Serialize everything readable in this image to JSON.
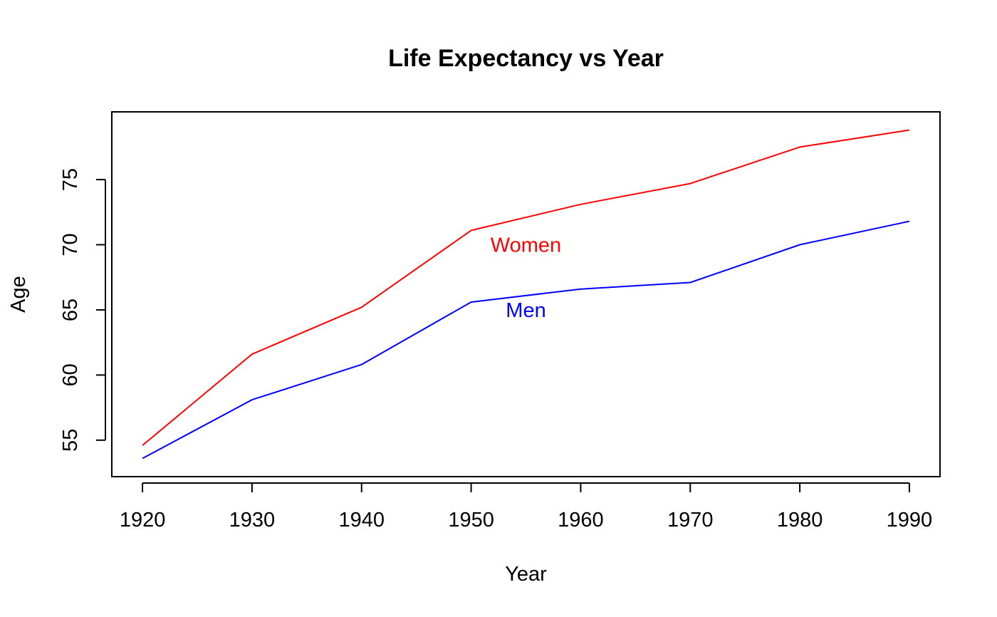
{
  "chart_data": {
    "type": "line",
    "title": "Life Expectancy vs Year",
    "xlabel": "Year",
    "ylabel": "Age",
    "x": [
      1920,
      1930,
      1940,
      1950,
      1960,
      1970,
      1980,
      1990
    ],
    "xlim": [
      1917.2,
      1992.8
    ],
    "ylim": [
      52.2,
      80.2
    ],
    "xticks": [
      1920,
      1930,
      1940,
      1950,
      1960,
      1970,
      1980,
      1990
    ],
    "yticks": [
      55,
      60,
      65,
      70,
      75
    ],
    "grid": false,
    "legend": "none",
    "series": [
      {
        "name": "Women",
        "color": "#ff0000",
        "values": [
          54.6,
          61.6,
          65.2,
          71.1,
          73.1,
          74.7,
          77.5,
          78.8
        ],
        "annotation": {
          "text": "Women",
          "x": 1955,
          "y": 70
        }
      },
      {
        "name": "Men",
        "color": "#0000ff",
        "values": [
          53.6,
          58.1,
          60.8,
          65.6,
          66.6,
          67.1,
          70.0,
          71.8
        ],
        "annotation": {
          "text": "Men",
          "x": 1955,
          "y": 65
        }
      }
    ]
  }
}
